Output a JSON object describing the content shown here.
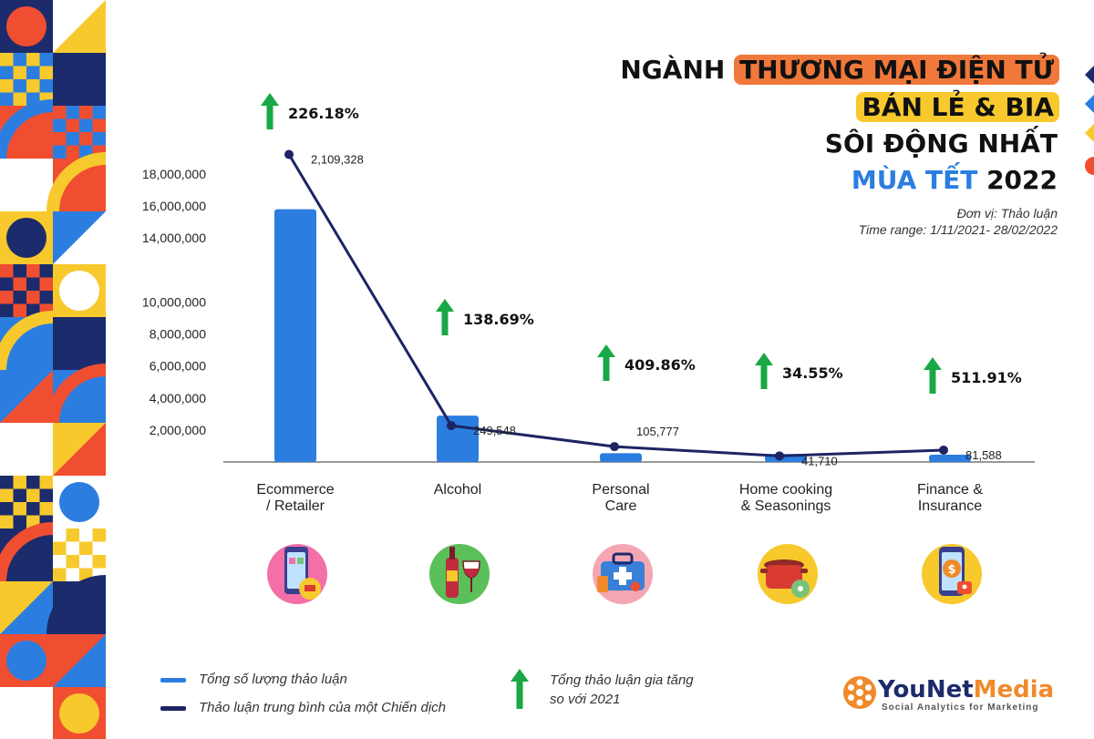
{
  "title": {
    "line1_prefix": "NGÀNH",
    "line1_highlight": "THƯƠNG MẠI ĐIỆN TỬ",
    "line2_highlight": "BÁN LẺ & BIA",
    "line3": "SÔI ĐỘNG NHẤT",
    "line4_blue": "MÙA TẾT",
    "line4_year": "2022"
  },
  "subtitle": {
    "unit": "Đơn vị: Thảo luận",
    "time_range": "Time range: 1/11/2021- 28/02/2022"
  },
  "chart_data": {
    "type": "bar",
    "categories": [
      "Ecommerce\n/ Retailer",
      "Alcohol",
      "Personal\nCare",
      "Home cooking\n& Seasonings",
      "Finance &\nInsurance"
    ],
    "y_ticks": [
      "2,000,000",
      "4,000,000",
      "6,000,000",
      "8,000,000",
      "10,000,000",
      "14,000,000",
      "16,000,000",
      "18,000,000"
    ],
    "series": [
      {
        "name": "Tổng số lượng thảo luận",
        "type": "bar",
        "color": "#2b7de0",
        "values": [
          15800000,
          2900000,
          550000,
          500000,
          300000
        ]
      },
      {
        "name": "Thảo luận trung bình của một Chiến dịch",
        "type": "line",
        "color": "#1c2464",
        "values": [
          2109328,
          249548,
          105777,
          41710,
          81588
        ],
        "labels": [
          "2,109,328",
          "249,548",
          "105,777",
          "41,710",
          "81,588"
        ]
      }
    ],
    "growth": {
      "name": "Tổng thảo luận gia tăng so với 2021",
      "color": "#18a845",
      "labels": [
        "226.18%",
        "138.69%",
        "409.86%",
        "34.55%",
        "511.91%"
      ]
    },
    "icons": [
      "phone-shopping-icon",
      "wine-bottle-icon",
      "medical-kit-icon",
      "cooking-pot-icon",
      "coin-phone-icon"
    ]
  },
  "legend": {
    "bar_label": "Tổng số lượng thảo luận",
    "line_label": "Thảo luận trung bình của một Chiến dịch",
    "growth_label_1": "Tổng thảo luận gia tăng",
    "growth_label_2": "so với 2021"
  },
  "brand": {
    "name_part1": "YouNet",
    "name_part2": "Media",
    "tagline": "Social Analytics for Marketing"
  }
}
